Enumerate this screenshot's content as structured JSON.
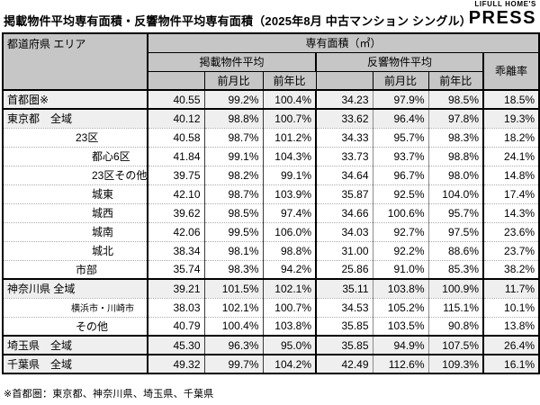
{
  "title": "掲載物件平均専有面積・反響物件平均専有面積（2025年8月 中古マンション シングル）",
  "logo": {
    "line1": "LIFULL HOME'S",
    "line2": "PRESS",
    "color": "#f04e00"
  },
  "table_headers": {
    "corner": "都道府県 エリア",
    "span_all": "専有面積（㎡）",
    "group_listed": "掲載物件平均",
    "group_response": "反響物件平均",
    "mom": "前月比",
    "yoy": "前年比",
    "divergence": "乖離率"
  },
  "footnote": "※首都圏：東京都、神奈川県、埼玉県、千葉県",
  "colors": {
    "header_bg": "#c6c6c6",
    "summary_row_bg": "#efefef",
    "border": "#000000",
    "logo_orange": "#f04e00"
  },
  "chart_data": {
    "type": "table",
    "title": "掲載物件平均専有面積・反響物件平均専有面積（2025年8月 中古マンション シングル）",
    "columns": [
      "都道府県 エリア",
      "掲載物件平均 専有面積(㎡)",
      "掲載 前月比",
      "掲載 前年比",
      "反響物件平均 専有面積(㎡)",
      "反響 前月比",
      "反響 前年比",
      "乖離率"
    ],
    "rows": [
      {
        "label": "首都圏※",
        "indent": 0,
        "summary": true,
        "group_start": true,
        "small": false,
        "values": [
          "40.55",
          "99.2%",
          "100.4%",
          "34.23",
          "97.9%",
          "98.5%",
          "18.5%"
        ]
      },
      {
        "label": "東京都　全域",
        "indent": 0,
        "summary": true,
        "group_start": true,
        "small": false,
        "values": [
          "40.12",
          "98.8%",
          "100.7%",
          "33.62",
          "96.4%",
          "97.8%",
          "19.3%"
        ]
      },
      {
        "label": "23区",
        "indent": 1,
        "summary": false,
        "group_start": false,
        "small": false,
        "values": [
          "40.58",
          "98.7%",
          "101.2%",
          "34.33",
          "95.7%",
          "98.3%",
          "18.2%"
        ]
      },
      {
        "label": "都心6区",
        "indent": 2,
        "summary": false,
        "group_start": false,
        "small": false,
        "values": [
          "41.84",
          "99.1%",
          "104.3%",
          "33.73",
          "93.7%",
          "98.8%",
          "24.1%"
        ]
      },
      {
        "label": "23区その他",
        "indent": 2,
        "summary": false,
        "group_start": false,
        "small": false,
        "values": [
          "39.75",
          "98.2%",
          "99.1%",
          "34.64",
          "96.7%",
          "98.0%",
          "14.8%"
        ]
      },
      {
        "label": "城東",
        "indent": 2,
        "summary": false,
        "group_start": false,
        "small": false,
        "values": [
          "42.10",
          "98.7%",
          "103.9%",
          "35.87",
          "92.5%",
          "104.0%",
          "17.4%"
        ]
      },
      {
        "label": "城西",
        "indent": 2,
        "summary": false,
        "group_start": false,
        "small": false,
        "values": [
          "39.62",
          "98.5%",
          "97.4%",
          "34.66",
          "100.6%",
          "95.7%",
          "14.3%"
        ]
      },
      {
        "label": "城南",
        "indent": 2,
        "summary": false,
        "group_start": false,
        "small": false,
        "values": [
          "42.06",
          "99.5%",
          "106.0%",
          "34.03",
          "92.7%",
          "97.5%",
          "23.6%"
        ]
      },
      {
        "label": "城北",
        "indent": 2,
        "summary": false,
        "group_start": false,
        "small": false,
        "values": [
          "38.34",
          "98.1%",
          "98.8%",
          "31.00",
          "92.2%",
          "88.6%",
          "23.7%"
        ]
      },
      {
        "label": "市部",
        "indent": 1,
        "summary": false,
        "group_start": false,
        "small": false,
        "values": [
          "35.74",
          "98.3%",
          "94.2%",
          "25.86",
          "91.0%",
          "85.3%",
          "38.2%"
        ]
      },
      {
        "label": "神奈川県 全域",
        "indent": 0,
        "summary": true,
        "group_start": true,
        "small": false,
        "values": [
          "39.21",
          "101.5%",
          "102.1%",
          "35.11",
          "103.8%",
          "100.9%",
          "11.7%"
        ]
      },
      {
        "label": "横浜市・川崎市",
        "indent": 1,
        "summary": false,
        "group_start": false,
        "small": true,
        "values": [
          "38.03",
          "102.1%",
          "100.7%",
          "34.53",
          "105.2%",
          "115.1%",
          "10.1%"
        ]
      },
      {
        "label": "その他",
        "indent": 1,
        "summary": false,
        "group_start": false,
        "small": false,
        "values": [
          "40.79",
          "100.4%",
          "103.8%",
          "35.85",
          "103.5%",
          "90.8%",
          "13.8%"
        ]
      },
      {
        "label": "埼玉県　全域",
        "indent": 0,
        "summary": true,
        "group_start": true,
        "small": false,
        "values": [
          "45.30",
          "96.3%",
          "95.0%",
          "35.85",
          "94.9%",
          "107.5%",
          "26.4%"
        ]
      },
      {
        "label": "千葉県　全域",
        "indent": 0,
        "summary": true,
        "group_start": true,
        "small": false,
        "values": [
          "49.32",
          "99.7%",
          "104.2%",
          "42.49",
          "112.6%",
          "109.3%",
          "16.1%"
        ]
      }
    ]
  }
}
